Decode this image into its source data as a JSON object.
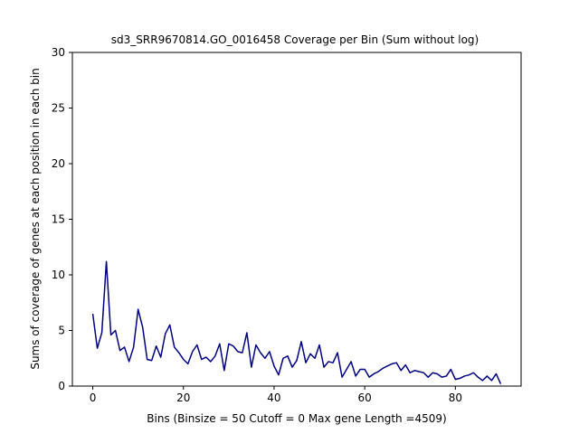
{
  "chart_data": {
    "type": "line",
    "title": "sd3_SRR9670814.GO_0016458 Coverage per Bin (Sum without log)",
    "xlabel": "Bins  (Binsize = 50 Cutoff = 0 Max gene Length =4509)",
    "ylabel": "Sums of coverage of genes at each position in each bin",
    "xlim": [
      -4.5,
      94.5
    ],
    "ylim": [
      0,
      30
    ],
    "xticks": [
      0,
      20,
      40,
      60,
      80
    ],
    "yticks": [
      0,
      5,
      10,
      15,
      20,
      25,
      30
    ],
    "grid": false,
    "line_color": "#000080",
    "series": [
      {
        "x": [
          0,
          1,
          2,
          3,
          4,
          5,
          6,
          7,
          8,
          9,
          10,
          11,
          12,
          13,
          14,
          15,
          16,
          17,
          18,
          19,
          20,
          21,
          22,
          23,
          24,
          25,
          26,
          27,
          28,
          29,
          30,
          31,
          32,
          33,
          34,
          35,
          36,
          37,
          38,
          39,
          40,
          41,
          42,
          43,
          44,
          45,
          46,
          47,
          48,
          49,
          50,
          51,
          52,
          53,
          54,
          55,
          56,
          57,
          58,
          59,
          60,
          61,
          62,
          63,
          64,
          65,
          66,
          67,
          68,
          69,
          70,
          71,
          72,
          73,
          74,
          75,
          76,
          77,
          78,
          79,
          80,
          81,
          82,
          83,
          84,
          85,
          86,
          87,
          88,
          89,
          90
        ],
        "values": [
          6.5,
          3.4,
          4.8,
          11.2,
          4.6,
          5.0,
          3.2,
          3.5,
          2.2,
          3.5,
          6.9,
          5.3,
          2.4,
          2.3,
          3.6,
          2.6,
          4.7,
          5.5,
          3.5,
          3.0,
          2.4,
          2.0,
          3.1,
          3.7,
          2.4,
          2.6,
          2.2,
          2.7,
          3.8,
          1.4,
          3.8,
          3.6,
          3.1,
          3.0,
          4.8,
          1.7,
          3.7,
          3.0,
          2.5,
          3.1,
          1.8,
          1.0,
          2.5,
          2.7,
          1.7,
          2.3,
          4.0,
          2.1,
          2.9,
          2.5,
          3.7,
          1.7,
          2.2,
          2.1,
          3.0,
          0.8,
          1.5,
          2.2,
          0.9,
          1.5,
          1.5,
          0.8,
          1.1,
          1.3,
          1.6,
          1.8,
          2.0,
          2.1,
          1.4,
          1.9,
          1.2,
          1.4,
          1.3,
          1.2,
          0.8,
          1.2,
          1.1,
          0.8,
          0.9,
          1.5,
          0.6,
          0.7,
          0.9,
          1.0,
          1.2,
          0.8,
          0.5,
          0.9,
          0.5,
          1.1,
          0.2
        ]
      }
    ]
  }
}
